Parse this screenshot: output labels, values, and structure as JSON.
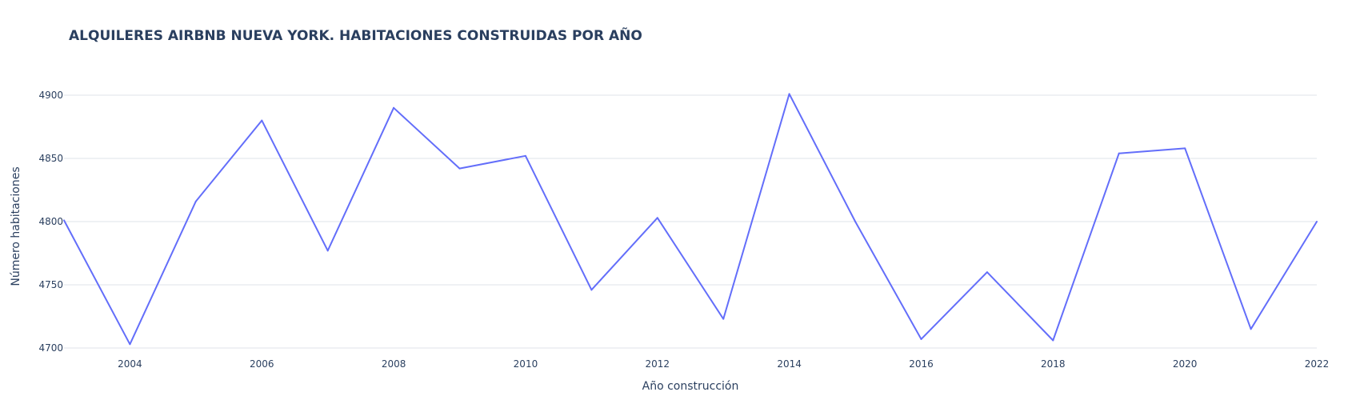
{
  "chart_data": {
    "type": "line",
    "title": "ALQUILERES AIRBNB NUEVA YORK. HABITACIONES CONSTRUIDAS POR AÑO",
    "xlabel": "Año construcción",
    "ylabel": "Número habitaciones",
    "x": [
      2003,
      2004,
      2005,
      2006,
      2007,
      2008,
      2009,
      2010,
      2011,
      2012,
      2013,
      2014,
      2015,
      2016,
      2017,
      2018,
      2019,
      2020,
      2021,
      2022
    ],
    "series": [
      {
        "values": [
          4801,
          4703,
          4816,
          4880,
          4777,
          4890,
          4842,
          4852,
          4746,
          4803,
          4723,
          4901,
          4800,
          4707,
          4760,
          4706,
          4854,
          4858,
          4715,
          4800
        ]
      }
    ],
    "xlim": [
      2003,
      2022
    ],
    "ylim": [
      4700,
      4910
    ],
    "x_ticks": [
      "2004",
      "2006",
      "2008",
      "2010",
      "2012",
      "2014",
      "2016",
      "2018",
      "2020",
      "2022"
    ],
    "y_ticks": [
      "4700",
      "4750",
      "4800",
      "4850",
      "4900"
    ],
    "grid": "horizontal",
    "line_color": "#636efa"
  }
}
